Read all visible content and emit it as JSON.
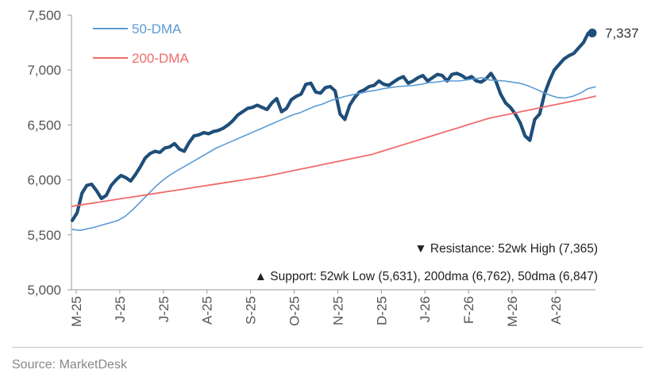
{
  "chart_data": {
    "type": "line",
    "title": "",
    "xlabel": "",
    "ylabel": "",
    "ylim": [
      5000,
      7500
    ],
    "y_ticks": [
      5000,
      5500,
      6000,
      6500,
      7000,
      7500
    ],
    "y_tick_labels": [
      "5,000",
      "5,500",
      "6,000",
      "6,500",
      "7,000",
      "7,500"
    ],
    "x_tick_labels": [
      "M-25",
      "J-25",
      "J-25",
      "A-25",
      "S-25",
      "O-25",
      "N-25",
      "D-25",
      "J-26",
      "F-26",
      "M-26",
      "A-26"
    ],
    "grid": false,
    "legend_position": "top-left",
    "series": [
      {
        "name": "",
        "color": "#1f4e79",
        "values": [
          5631,
          5700,
          5880,
          5950,
          5960,
          5900,
          5830,
          5860,
          5950,
          6000,
          6040,
          6020,
          5990,
          6050,
          6120,
          6200,
          6240,
          6260,
          6250,
          6290,
          6300,
          6330,
          6280,
          6260,
          6340,
          6400,
          6410,
          6430,
          6420,
          6440,
          6450,
          6470,
          6500,
          6540,
          6590,
          6620,
          6650,
          6660,
          6680,
          6660,
          6640,
          6700,
          6740,
          6620,
          6650,
          6730,
          6760,
          6780,
          6870,
          6880,
          6800,
          6790,
          6840,
          6850,
          6810,
          6600,
          6550,
          6680,
          6750,
          6800,
          6820,
          6850,
          6860,
          6900,
          6870,
          6860,
          6890,
          6920,
          6940,
          6880,
          6900,
          6930,
          6950,
          6900,
          6930,
          6960,
          6950,
          6900,
          6960,
          6970,
          6950,
          6920,
          6940,
          6900,
          6890,
          6920,
          6970,
          6900,
          6780,
          6700,
          6660,
          6600,
          6520,
          6400,
          6360,
          6550,
          6600,
          6780,
          6900,
          7000,
          7050,
          7100,
          7130,
          7150,
          7200,
          7250,
          7337
        ]
      },
      {
        "name": "50-DMA",
        "color": "#5b9bd5",
        "values": [
          5550,
          5540,
          5555,
          5570,
          5590,
          5610,
          5630,
          5670,
          5730,
          5800,
          5870,
          5940,
          6000,
          6050,
          6090,
          6130,
          6170,
          6210,
          6250,
          6290,
          6320,
          6350,
          6380,
          6410,
          6440,
          6470,
          6500,
          6530,
          6560,
          6590,
          6610,
          6640,
          6670,
          6690,
          6720,
          6740,
          6760,
          6775,
          6790,
          6805,
          6815,
          6830,
          6840,
          6850,
          6855,
          6860,
          6870,
          6885,
          6890,
          6900,
          6900,
          6900,
          6910,
          6920,
          6930,
          6910,
          6905,
          6900,
          6890,
          6880,
          6860,
          6830,
          6800,
          6770,
          6750,
          6745,
          6760,
          6790,
          6830,
          6847
        ]
      },
      {
        "name": "200-DMA",
        "color": "#f06b6b",
        "values": [
          5760,
          5775,
          5790,
          5805,
          5820,
          5835,
          5850,
          5865,
          5880,
          5895,
          5910,
          5925,
          5940,
          5955,
          5970,
          5985,
          6000,
          6015,
          6030,
          6050,
          6070,
          6090,
          6110,
          6130,
          6150,
          6170,
          6190,
          6210,
          6230,
          6260,
          6290,
          6320,
          6350,
          6380,
          6410,
          6440,
          6470,
          6500,
          6530,
          6560,
          6580,
          6600,
          6620,
          6640,
          6660,
          6680,
          6700,
          6720,
          6740,
          6762
        ]
      }
    ],
    "last_value_label": "7,337",
    "annotations": [
      {
        "marker": "▼",
        "text": "Resistance:  52wk High (7,365)"
      },
      {
        "marker": "▲",
        "text": "Support:  52wk Low (5,631), 200dma (6,762), 50dma (6,847)"
      }
    ]
  },
  "source": "Source: MarketDesk"
}
